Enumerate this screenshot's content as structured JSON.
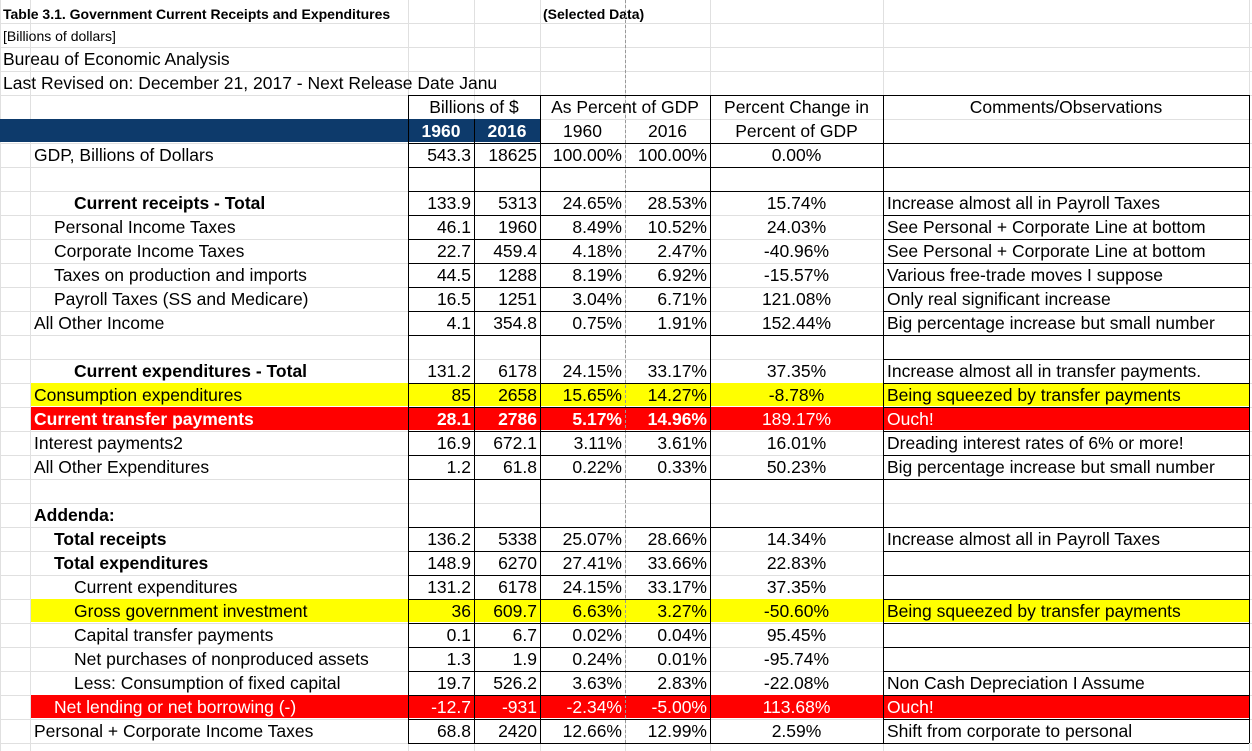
{
  "header": {
    "title": "Table 3.1. Government Current Receipts and Expenditures",
    "selected": "(Selected Data)",
    "units": "[Billions of dollars]",
    "agency": "Bureau of Economic Analysis",
    "revised": "Last Revised on: December 21, 2017 - Next Release Date Janu"
  },
  "col_headers": {
    "billions": "Billions of $",
    "percent_gdp": "As Percent of GDP",
    "pct_change_1": "Percent Change in",
    "pct_change_2": "Percent of GDP",
    "comments": "Comments/Observations",
    "y1960": "1960",
    "y2016": "2016",
    "p1960": "1960",
    "p2016": "2016"
  },
  "rows": [
    {
      "label": "GDP, Billions of Dollars",
      "v1960": "543.3",
      "v2016": "18625",
      "p1960": "100.00%",
      "p2016": "100.00%",
      "chg": "0.00%",
      "comment": ""
    },
    {
      "label": "Current receipts - Total",
      "v1960": "133.9",
      "v2016": "5313",
      "p1960": "24.65%",
      "p2016": "28.53%",
      "chg": "15.74%",
      "comment": "Increase almost all in Payroll Taxes"
    },
    {
      "label": "Personal Income Taxes",
      "v1960": "46.1",
      "v2016": "1960",
      "p1960": "8.49%",
      "p2016": "10.52%",
      "chg": "24.03%",
      "comment": "See Personal + Corporate Line at bottom"
    },
    {
      "label": "Corporate Income Taxes",
      "v1960": "22.7",
      "v2016": "459.4",
      "p1960": "4.18%",
      "p2016": "2.47%",
      "chg": "-40.96%",
      "comment": "See Personal + Corporate Line at bottom"
    },
    {
      "label": "Taxes on production and imports",
      "v1960": "44.5",
      "v2016": "1288",
      "p1960": "8.19%",
      "p2016": "6.92%",
      "chg": "-15.57%",
      "comment": "Various free-trade moves I suppose"
    },
    {
      "label": "Payroll Taxes (SS and Medicare)",
      "v1960": "16.5",
      "v2016": "1251",
      "p1960": "3.04%",
      "p2016": "6.71%",
      "chg": "121.08%",
      "comment": "Only real significant increase"
    },
    {
      "label": "All Other Income",
      "v1960": "4.1",
      "v2016": "354.8",
      "p1960": "0.75%",
      "p2016": "1.91%",
      "chg": "152.44%",
      "comment": "Big percentage increase but small number"
    },
    {
      "label": "Current expenditures - Total",
      "v1960": "131.2",
      "v2016": "6178",
      "p1960": "24.15%",
      "p2016": "33.17%",
      "chg": "37.35%",
      "comment": "Increase almost all in transfer payments."
    },
    {
      "label": "Consumption expenditures",
      "v1960": "85",
      "v2016": "2658",
      "p1960": "15.65%",
      "p2016": "14.27%",
      "chg": "-8.78%",
      "comment": "Being squeezed by transfer payments"
    },
    {
      "label": "Current transfer payments",
      "v1960": "28.1",
      "v2016": "2786",
      "p1960": "5.17%",
      "p2016": "14.96%",
      "chg": "189.17%",
      "comment": "Ouch!"
    },
    {
      "label": "Interest payments2",
      "v1960": "16.9",
      "v2016": "672.1",
      "p1960": "3.11%",
      "p2016": "3.61%",
      "chg": "16.01%",
      "comment": "Dreading interest rates of 6% or more!"
    },
    {
      "label": "All Other Expenditures",
      "v1960": "1.2",
      "v2016": "61.8",
      "p1960": "0.22%",
      "p2016": "0.33%",
      "chg": "50.23%",
      "comment": "Big percentage increase but small number"
    },
    {
      "label": "Addenda:",
      "v1960": "",
      "v2016": "",
      "p1960": "",
      "p2016": "",
      "chg": "",
      "comment": ""
    },
    {
      "label": "Total receipts",
      "v1960": "136.2",
      "v2016": "5338",
      "p1960": "25.07%",
      "p2016": "28.66%",
      "chg": "14.34%",
      "comment": "Increase almost all in Payroll Taxes"
    },
    {
      "label": "Total expenditures",
      "v1960": "148.9",
      "v2016": "6270",
      "p1960": "27.41%",
      "p2016": "33.66%",
      "chg": "22.83%",
      "comment": ""
    },
    {
      "label": "Current expenditures",
      "v1960": "131.2",
      "v2016": "6178",
      "p1960": "24.15%",
      "p2016": "33.17%",
      "chg": "37.35%",
      "comment": ""
    },
    {
      "label": "Gross government investment",
      "v1960": "36",
      "v2016": "609.7",
      "p1960": "6.63%",
      "p2016": "3.27%",
      "chg": "-50.60%",
      "comment": "Being squeezed by transfer payments"
    },
    {
      "label": "Capital transfer payments",
      "v1960": "0.1",
      "v2016": "6.7",
      "p1960": "0.02%",
      "p2016": "0.04%",
      "chg": "95.45%",
      "comment": ""
    },
    {
      "label": "Net purchases of nonproduced assets",
      "v1960": "1.3",
      "v2016": "1.9",
      "p1960": "0.24%",
      "p2016": "0.01%",
      "chg": "-95.74%",
      "comment": ""
    },
    {
      "label": "Less: Consumption of fixed capital",
      "v1960": "19.7",
      "v2016": "526.2",
      "p1960": "3.63%",
      "p2016": "2.83%",
      "chg": "-22.08%",
      "comment": "Non Cash Depreciation I Assume"
    },
    {
      "label": "Net lending or net borrowing (-)",
      "v1960": "-12.7",
      "v2016": "-931",
      "p1960": "-2.34%",
      "p2016": "-5.00%",
      "chg": "113.68%",
      "comment": "Ouch!"
    },
    {
      "label": "Personal + Corporate Income Taxes",
      "v1960": "68.8",
      "v2016": "2420",
      "p1960": "12.66%",
      "p2016": "12.99%",
      "chg": "2.59%",
      "comment": "Shift from corporate to personal"
    }
  ],
  "colors": {
    "header_band": "#0d3a6b",
    "yellow": "#ffff00",
    "red": "#ff0000",
    "grid": "#e0e0e0"
  }
}
